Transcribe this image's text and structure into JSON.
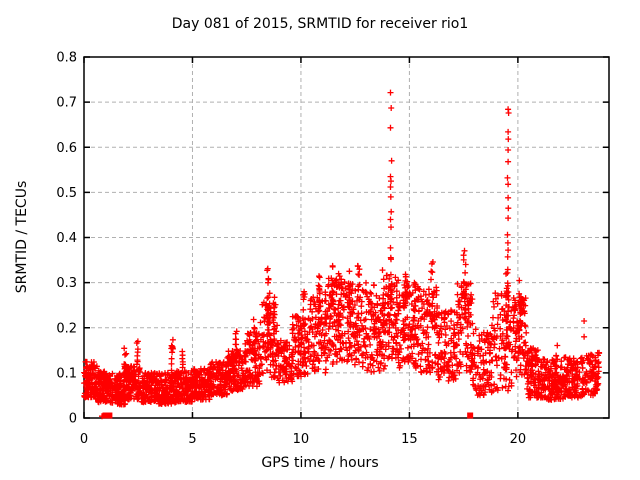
{
  "chart_data": {
    "type": "scatter",
    "title": "Day 081 of 2015, SRMTID for receiver rio1",
    "xlabel": "GPS time / hours",
    "ylabel": "SRMTID / TECUs",
    "xlim": [
      0,
      24.2
    ],
    "ylim": [
      0,
      0.8
    ],
    "xticks": [
      0,
      5,
      10,
      15,
      20
    ],
    "xtick_labels": [
      "0",
      "5",
      "10",
      "15",
      "20"
    ],
    "yticks": [
      0,
      0.1,
      0.2,
      0.3,
      0.4,
      0.5,
      0.6,
      0.7,
      0.8
    ],
    "ytick_labels": [
      "0",
      "0.1",
      "0.2",
      "0.3",
      "0.4",
      "0.5",
      "0.6",
      "0.7",
      "0.8"
    ],
    "grid": "dashed-both-axes",
    "legend": "none",
    "marker": {
      "shape": "plus",
      "size": 7,
      "color": "#ff0000"
    },
    "colors": {
      "text": "#000000",
      "border": "#000000",
      "grid": "#b0b0b0",
      "background": "#ffffff",
      "points": "#ff0000"
    },
    "peaks": [
      {
        "x": 14.15,
        "y": 0.72
      },
      {
        "x": 19.55,
        "y": 0.68
      },
      {
        "x": 17.6,
        "y": 0.39
      },
      {
        "x": 16.1,
        "y": 0.37
      },
      {
        "x": 8.5,
        "y": 0.345
      },
      {
        "x": 11.45,
        "y": 0.35
      }
    ],
    "point_generation": {
      "seed": 42,
      "bands": [
        [
          0.0,
          0.6,
          0.045,
          0.125,
          110,
          1.2
        ],
        [
          0.6,
          1.2,
          0.035,
          0.105,
          110,
          1.2
        ],
        [
          1.2,
          1.9,
          0.03,
          0.1,
          120,
          1.2
        ],
        [
          1.9,
          2.6,
          0.04,
          0.115,
          125,
          1.2
        ],
        [
          2.6,
          3.4,
          0.035,
          0.1,
          130,
          1.2
        ],
        [
          3.4,
          4.2,
          0.03,
          0.1,
          130,
          1.2
        ],
        [
          4.2,
          5.0,
          0.035,
          0.105,
          135,
          1.2
        ],
        [
          5.0,
          5.8,
          0.04,
          0.11,
          130,
          1.2
        ],
        [
          5.8,
          6.6,
          0.05,
          0.125,
          125,
          1.2
        ],
        [
          6.6,
          7.4,
          0.06,
          0.15,
          120,
          1.1
        ],
        [
          7.4,
          8.1,
          0.07,
          0.19,
          100,
          1.1
        ],
        [
          8.1,
          8.9,
          0.09,
          0.26,
          90,
          1.1
        ],
        [
          8.9,
          9.6,
          0.075,
          0.175,
          85,
          1.1
        ],
        [
          9.6,
          10.4,
          0.09,
          0.23,
          95,
          1.1
        ],
        [
          10.4,
          11.2,
          0.1,
          0.28,
          100,
          1.0
        ],
        [
          11.2,
          12.1,
          0.11,
          0.31,
          105,
          1.0
        ],
        [
          12.1,
          13.0,
          0.11,
          0.3,
          105,
          1.0
        ],
        [
          13.0,
          13.9,
          0.1,
          0.28,
          100,
          1.0
        ],
        [
          13.9,
          14.5,
          0.13,
          0.32,
          75,
          1.0
        ],
        [
          14.5,
          15.4,
          0.11,
          0.3,
          105,
          1.0
        ],
        [
          15.4,
          16.3,
          0.1,
          0.29,
          100,
          1.0
        ],
        [
          16.3,
          17.2,
          0.08,
          0.24,
          100,
          1.1
        ],
        [
          17.2,
          17.9,
          0.1,
          0.3,
          85,
          1.0
        ],
        [
          17.9,
          18.8,
          0.05,
          0.2,
          95,
          1.15
        ],
        [
          18.8,
          19.8,
          0.06,
          0.28,
          100,
          1.0
        ],
        [
          19.8,
          20.4,
          0.09,
          0.27,
          85,
          1.0
        ],
        [
          20.4,
          21.2,
          0.045,
          0.155,
          120,
          1.2
        ],
        [
          21.2,
          22.1,
          0.04,
          0.13,
          130,
          1.2
        ],
        [
          22.1,
          23.0,
          0.045,
          0.135,
          120,
          1.2
        ],
        [
          23.0,
          23.75,
          0.05,
          0.145,
          85,
          1.2
        ]
      ],
      "streaks": [
        [
          1.9,
          0.05,
          0.1,
          0.155,
          8
        ],
        [
          2.45,
          0.04,
          0.11,
          0.17,
          8
        ],
        [
          4.05,
          0.05,
          0.1,
          0.18,
          10
        ],
        [
          4.55,
          0.04,
          0.1,
          0.15,
          6
        ],
        [
          7.0,
          0.05,
          0.13,
          0.21,
          8
        ],
        [
          7.85,
          0.04,
          0.14,
          0.235,
          8
        ],
        [
          8.5,
          0.06,
          0.18,
          0.345,
          22
        ],
        [
          8.75,
          0.04,
          0.15,
          0.3,
          10
        ],
        [
          10.15,
          0.05,
          0.18,
          0.28,
          10
        ],
        [
          10.85,
          0.05,
          0.2,
          0.33,
          14
        ],
        [
          11.45,
          0.05,
          0.22,
          0.35,
          14
        ],
        [
          11.75,
          0.04,
          0.2,
          0.32,
          10
        ],
        [
          12.25,
          0.05,
          0.2,
          0.335,
          12
        ],
        [
          12.65,
          0.05,
          0.22,
          0.375,
          10
        ],
        [
          13.35,
          0.05,
          0.18,
          0.3,
          10
        ],
        [
          13.8,
          0.04,
          0.2,
          0.33,
          10
        ],
        [
          14.15,
          0.05,
          0.2,
          0.36,
          14
        ],
        [
          14.85,
          0.05,
          0.22,
          0.35,
          12
        ],
        [
          15.25,
          0.04,
          0.18,
          0.31,
          8
        ],
        [
          16.05,
          0.06,
          0.2,
          0.37,
          16
        ],
        [
          17.55,
          0.06,
          0.22,
          0.385,
          16
        ],
        [
          19.5,
          0.06,
          0.18,
          0.35,
          18
        ],
        [
          20.1,
          0.05,
          0.18,
          0.325,
          12
        ],
        [
          21.8,
          0.04,
          0.1,
          0.17,
          5
        ]
      ]
    },
    "outlier_points": [
      [
        14.13,
        0.721
      ],
      [
        14.16,
        0.687
      ],
      [
        14.13,
        0.643
      ],
      [
        14.18,
        0.57
      ],
      [
        14.13,
        0.535
      ],
      [
        14.15,
        0.525
      ],
      [
        14.13,
        0.512
      ],
      [
        14.14,
        0.49
      ],
      [
        14.16,
        0.457
      ],
      [
        14.13,
        0.44
      ],
      [
        14.15,
        0.423
      ],
      [
        14.13,
        0.377
      ],
      [
        19.55,
        0.684
      ],
      [
        19.57,
        0.676
      ],
      [
        19.55,
        0.634
      ],
      [
        19.56,
        0.618
      ],
      [
        19.55,
        0.594
      ],
      [
        19.55,
        0.568
      ],
      [
        19.52,
        0.532
      ],
      [
        19.55,
        0.518
      ],
      [
        19.55,
        0.488
      ],
      [
        19.56,
        0.465
      ],
      [
        19.55,
        0.443
      ],
      [
        19.52,
        0.406
      ],
      [
        19.54,
        0.388
      ],
      [
        19.55,
        0.372
      ],
      [
        19.53,
        0.357
      ],
      [
        23.05,
        0.215
      ],
      [
        23.05,
        0.18
      ]
    ],
    "zero_markers": {
      "plus": [
        [
          0.83,
          0.004
        ]
      ],
      "squares": [
        [
          0.99,
          0.004
        ],
        [
          1.17,
          0.004
        ],
        [
          17.8,
          0.004
        ]
      ]
    }
  }
}
